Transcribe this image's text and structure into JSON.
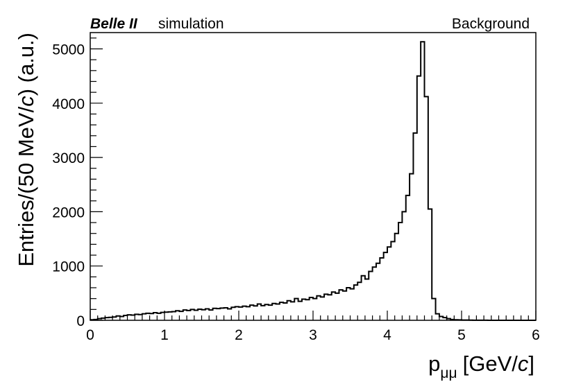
{
  "header": {
    "experiment": "Belle II",
    "tag": "simulation",
    "sample": "Background"
  },
  "chart_data": {
    "type": "histogram",
    "xlabel_main": "p",
    "xlabel_sub": "μμ",
    "xlabel_unit_pre": "[GeV/",
    "xlabel_unit_var": "c",
    "xlabel_unit_post": "]",
    "ylabel_pre": "Entries/(50 MeV/",
    "ylabel_var": "c",
    "ylabel_post": ") (a.u.)",
    "xlim": [
      0,
      6
    ],
    "ylim": [
      0,
      5300
    ],
    "x_ticks": [
      0,
      1,
      2,
      3,
      4,
      5,
      6
    ],
    "y_ticks": [
      0,
      1000,
      2000,
      3000,
      4000,
      5000
    ],
    "bin_width": 0.05,
    "bin_start": 0.0,
    "values": [
      10,
      15,
      30,
      40,
      50,
      55,
      60,
      80,
      70,
      90,
      100,
      95,
      110,
      105,
      120,
      130,
      125,
      140,
      130,
      145,
      150,
      155,
      160,
      175,
      165,
      190,
      180,
      200,
      185,
      205,
      195,
      210,
      190,
      220,
      215,
      225,
      230,
      210,
      240,
      250,
      245,
      260,
      250,
      280,
      265,
      300,
      270,
      290,
      280,
      310,
      300,
      330,
      320,
      360,
      340,
      400,
      350,
      390,
      380,
      420,
      400,
      450,
      430,
      480,
      470,
      520,
      500,
      560,
      540,
      600,
      580,
      650,
      700,
      820,
      760,
      900,
      980,
      1050,
      1150,
      1250,
      1350,
      1450,
      1600,
      1800,
      2000,
      2300,
      2700,
      3450,
      4500,
      5130,
      4120,
      2050,
      400,
      120,
      70,
      50,
      30,
      15,
      10,
      8,
      5,
      4,
      3,
      2,
      2,
      1,
      1,
      0,
      0,
      0,
      0,
      0,
      0,
      0,
      0,
      0,
      0,
      0,
      0,
      0
    ]
  }
}
